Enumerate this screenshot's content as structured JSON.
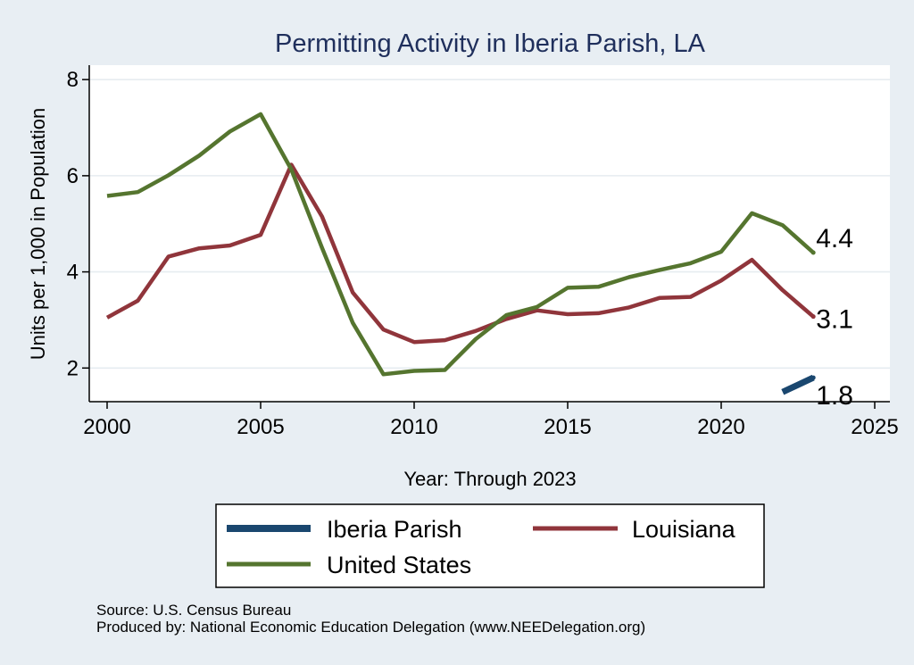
{
  "chart_data": {
    "type": "line",
    "title": "Permitting Activity in Iberia Parish, LA",
    "xlabel": "Year: Through 2023",
    "ylabel": "Units per 1,000 in Population",
    "xlim": [
      2000,
      2025
    ],
    "ylim": [
      1.3,
      8.3
    ],
    "x_ticks": [
      2000,
      2005,
      2010,
      2015,
      2020,
      2025
    ],
    "y_ticks": [
      2,
      4,
      6,
      8
    ],
    "grid": true,
    "legend_position": "bottom",
    "series": [
      {
        "name": "Iberia Parish",
        "color": "#1a476f",
        "x": [
          2022,
          2023
        ],
        "values": [
          1.5,
          1.8
        ],
        "end_label": "1.8"
      },
      {
        "name": "Louisiana",
        "color": "#90353b",
        "x": [
          2000,
          2001,
          2002,
          2003,
          2004,
          2005,
          2006,
          2007,
          2008,
          2009,
          2010,
          2011,
          2012,
          2013,
          2014,
          2015,
          2016,
          2017,
          2018,
          2019,
          2020,
          2021,
          2022,
          2023
        ],
        "values": [
          3.05,
          3.4,
          4.32,
          4.49,
          4.55,
          4.77,
          6.23,
          5.15,
          3.57,
          2.8,
          2.54,
          2.58,
          2.77,
          3.02,
          3.2,
          3.12,
          3.14,
          3.26,
          3.46,
          3.48,
          3.82,
          4.25,
          3.62,
          3.07
        ],
        "end_label": "3.1"
      },
      {
        "name": "United States",
        "color": "#55752f",
        "x": [
          2000,
          2001,
          2002,
          2003,
          2004,
          2005,
          2006,
          2007,
          2008,
          2009,
          2010,
          2011,
          2012,
          2013,
          2014,
          2015,
          2016,
          2017,
          2018,
          2019,
          2020,
          2021,
          2022,
          2023
        ],
        "values": [
          5.58,
          5.66,
          6.01,
          6.42,
          6.92,
          7.28,
          6.13,
          4.5,
          2.94,
          1.87,
          1.94,
          1.96,
          2.6,
          3.1,
          3.27,
          3.67,
          3.69,
          3.89,
          4.04,
          4.18,
          4.42,
          5.22,
          4.97,
          4.4
        ],
        "end_label": "4.4"
      }
    ],
    "legend_order": [
      "Iberia Parish",
      "Louisiana",
      "United States"
    ]
  },
  "notes": {
    "source": "Source: U.S. Census Bureau",
    "produced_by": "Produced by: National Economic Education Delegation (www.NEEDelegation.org)"
  }
}
